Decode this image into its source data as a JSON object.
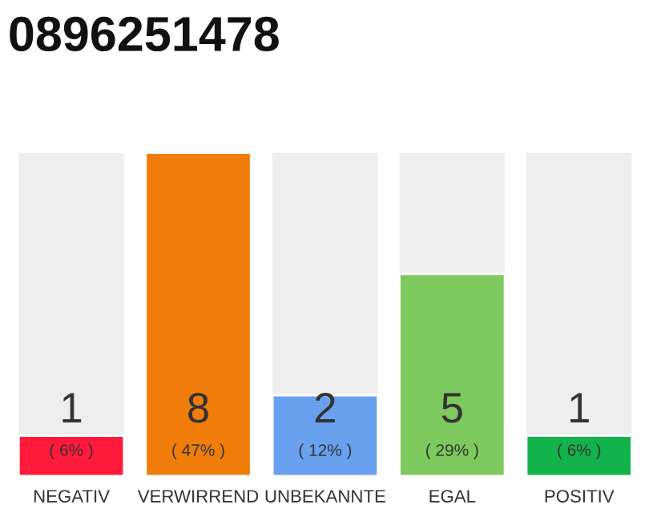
{
  "chart_data": {
    "type": "bar",
    "title": "0896251478",
    "categories": [
      "NEGATIV",
      "VERWIRREND",
      "UNBEKANNTE",
      "EGAL",
      "POSITIV"
    ],
    "values": [
      1,
      8,
      2,
      5,
      1
    ],
    "colors": [
      "#ff1a3c",
      "#f07d0a",
      "#6aa1ef",
      "#7dc95e",
      "#12b34a"
    ],
    "data_labels": true,
    "annotations": [
      "( 6% )",
      "( 47% )",
      "( 12% )",
      "( 29% )",
      "( 6% )"
    ],
    "grid": false,
    "legend": false
  }
}
